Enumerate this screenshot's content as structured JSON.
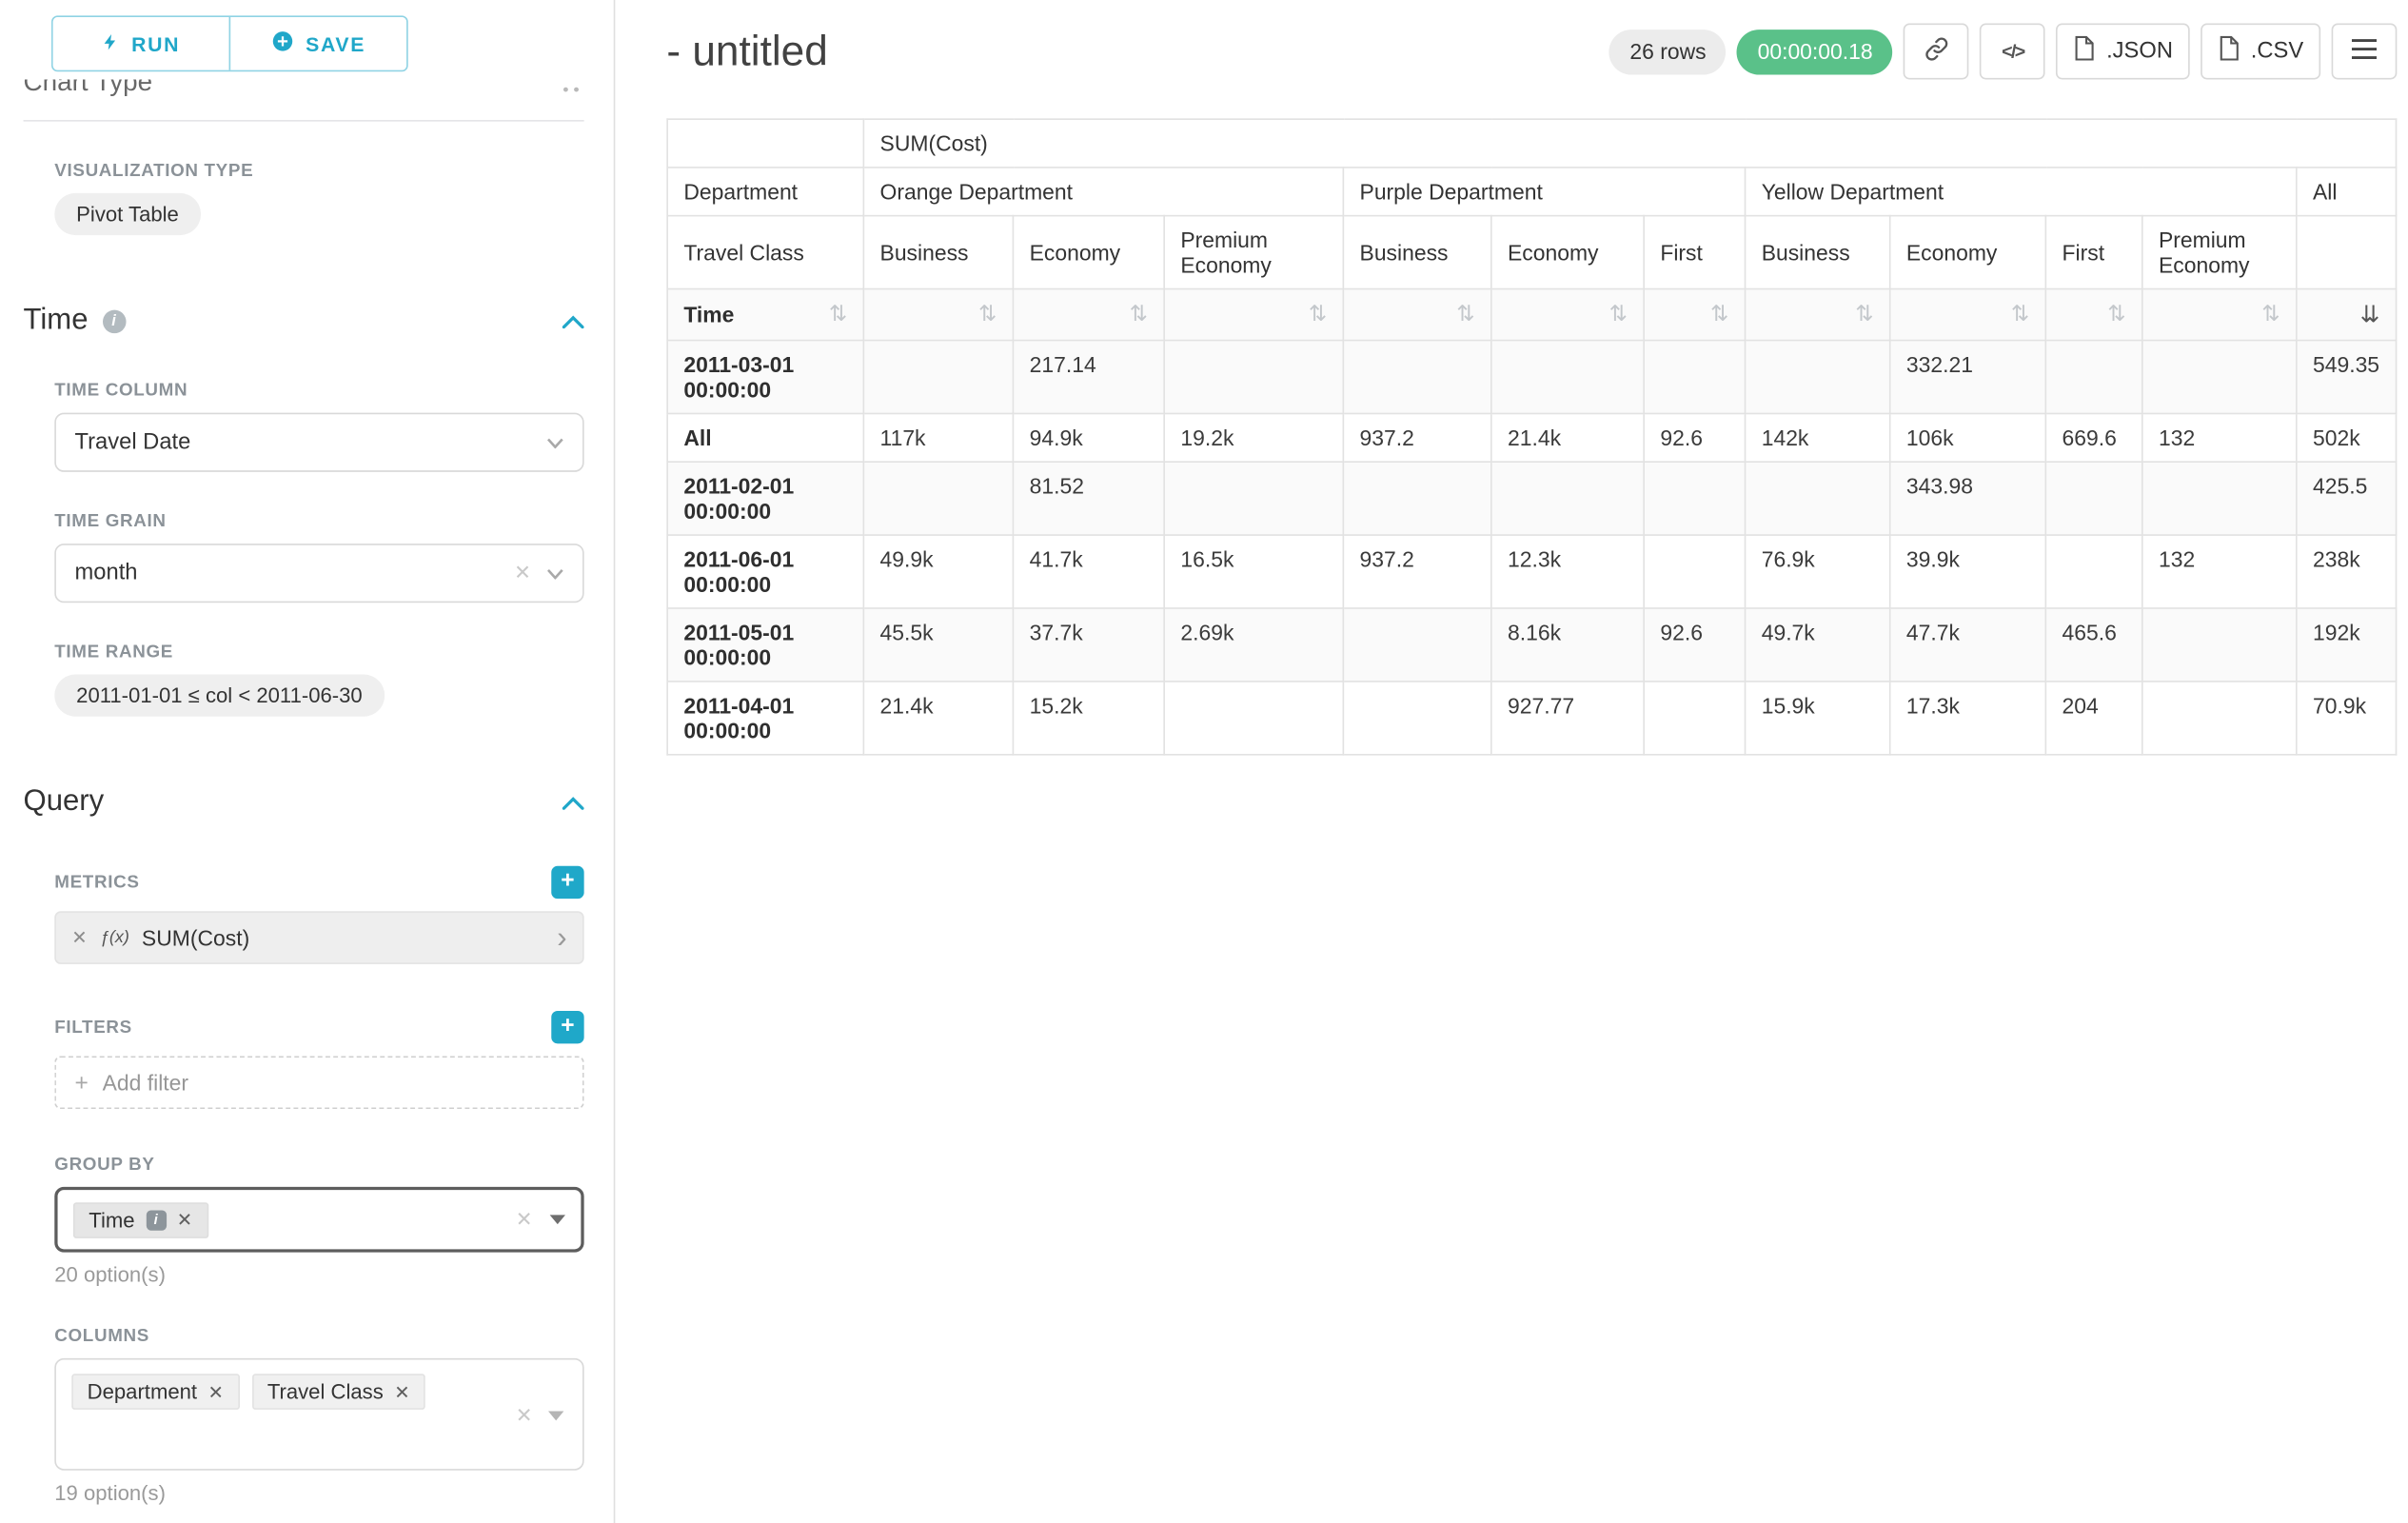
{
  "sidebar": {
    "run_label": "RUN",
    "save_label": "SAVE",
    "chart_type_heading": "Chart Type",
    "visualization": {
      "label": "VISUALIZATION TYPE",
      "value": "Pivot Table"
    },
    "time": {
      "title": "Time",
      "column_label": "TIME COLUMN",
      "column_value": "Travel Date",
      "grain_label": "TIME GRAIN",
      "grain_value": "month",
      "range_label": "TIME RANGE",
      "range_value": "2011-01-01 ≤ col < 2011-06-30"
    },
    "query": {
      "title": "Query",
      "metrics_label": "METRICS",
      "metric": {
        "prefix": "ƒ(x)",
        "name": "SUM(Cost)"
      },
      "filters_label": "FILTERS",
      "add_filter_label": "Add filter",
      "group_by_label": "GROUP BY",
      "group_by_items": [
        "Time"
      ],
      "group_by_options_hint": "20 option(s)",
      "columns_label": "COLUMNS",
      "columns_items": [
        "Department",
        "Travel Class"
      ],
      "columns_options_hint": "19 option(s)"
    }
  },
  "header": {
    "title": "- untitled",
    "rows_badge": "26 rows",
    "timer_badge": "00:00:00.18",
    "json_label": ".JSON",
    "csv_label": ".CSV",
    "code_icon_text": "</>",
    "icons": [
      "link-icon",
      "code-icon",
      "json-file-icon",
      "csv-file-icon",
      "menu-icon"
    ]
  },
  "pivot_table": {
    "metric_header": "SUM(Cost)",
    "department_label": "Department",
    "travel_class_label": "Travel Class",
    "time_label": "Time",
    "column_groups": [
      {
        "label": "Orange Department",
        "columns": [
          "Business",
          "Economy",
          "Premium Economy"
        ]
      },
      {
        "label": "Purple Department",
        "columns": [
          "Business",
          "Economy",
          "First"
        ]
      },
      {
        "label": "Yellow Department",
        "columns": [
          "Business",
          "Economy",
          "First",
          "Premium Economy"
        ]
      },
      {
        "label": "All",
        "columns": [
          ""
        ]
      }
    ],
    "rows": [
      {
        "time": "2011-03-01 00:00:00",
        "values": [
          "",
          "217.14",
          "",
          "",
          "",
          "",
          "",
          "332.21",
          "",
          "",
          "549.35"
        ]
      },
      {
        "time": "All",
        "values": [
          "117k",
          "94.9k",
          "19.2k",
          "937.2",
          "21.4k",
          "92.6",
          "142k",
          "106k",
          "669.6",
          "132",
          "502k"
        ]
      },
      {
        "time": "2011-02-01 00:00:00",
        "values": [
          "",
          "81.52",
          "",
          "",
          "",
          "",
          "",
          "343.98",
          "",
          "",
          "425.5"
        ]
      },
      {
        "time": "2011-06-01 00:00:00",
        "values": [
          "49.9k",
          "41.7k",
          "16.5k",
          "937.2",
          "12.3k",
          "",
          "76.9k",
          "39.9k",
          "",
          "132",
          "238k"
        ]
      },
      {
        "time": "2011-05-01 00:00:00",
        "values": [
          "45.5k",
          "37.7k",
          "2.69k",
          "",
          "8.16k",
          "92.6",
          "49.7k",
          "47.7k",
          "465.6",
          "",
          "192k"
        ]
      },
      {
        "time": "2011-04-01 00:00:00",
        "values": [
          "21.4k",
          "15.2k",
          "",
          "",
          "927.77",
          "",
          "15.9k",
          "17.3k",
          "204",
          "",
          "70.9k"
        ]
      }
    ]
  }
}
